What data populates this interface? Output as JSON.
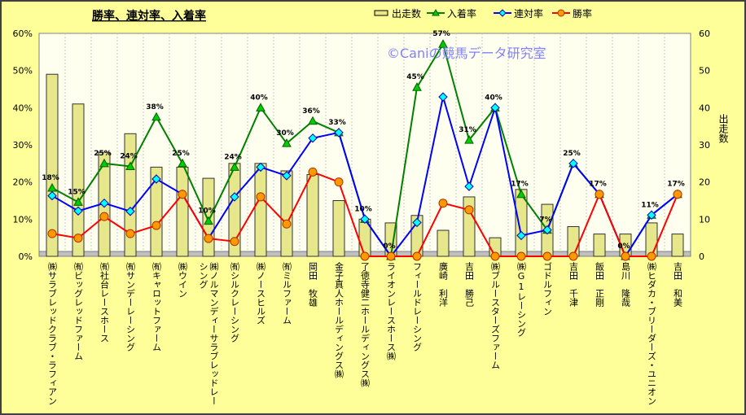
{
  "chart_data": {
    "type": "bar+line",
    "title": "勝率、連対率、入着率",
    "watermark": "©Caniの競馬データ研究室",
    "y_left": {
      "ylim": [
        0,
        60
      ],
      "ticks": [
        "0%",
        "10%",
        "20%",
        "30%",
        "40%",
        "50%",
        "60%"
      ]
    },
    "y_right": {
      "label": "出走数",
      "ylim": [
        0,
        60
      ],
      "ticks": [
        "0",
        "10",
        "20",
        "30",
        "40",
        "50",
        "60"
      ]
    },
    "legend": {
      "placement": "top-right",
      "entries": [
        "出走数",
        "入着率",
        "連対率",
        "勝率"
      ]
    },
    "colors": {
      "bars": "#e6e68a",
      "place": "#008000",
      "quinella": "#0000ff",
      "win": "#ff0000"
    },
    "categories": [
      "㈱サラブレッドクラブ・ラフィアン",
      "㈲ビッグレッドファーム",
      "㈲社台レースホース",
      "㈲サンデーレーシング",
      "㈲キャロットファーム",
      "㈱ウイン",
      "㈱ノルマンディーサラブレッドレーシング",
      "㈲シルクレーシング",
      "㈱ノースヒルズ",
      "㈲ミルファーム",
      "岡田　牧雄",
      "金子真人ホールディングス㈱",
      "了徳寺健二ホールディングス㈱",
      "ライオンレースホース㈱",
      "フィールドレーシング",
      "廣崎　利洋",
      "吉田　勝己",
      "㈱ブルースターズファーム",
      "㈱G1レーシング",
      "ゴドルフィン",
      "吉田　千津",
      "飯田　正剛",
      "島川　隆哉",
      "㈱ヒダカ・ブリーダーズ・ユニオン",
      "吉田　和美"
    ],
    "series": [
      {
        "name": "出走数",
        "type": "bar",
        "axis": "right",
        "values": [
          49,
          41,
          28,
          33,
          24,
          24,
          21,
          25,
          25,
          23,
          22,
          15,
          10,
          9,
          11,
          7,
          16,
          5,
          18,
          14,
          8,
          6,
          6,
          9,
          6
        ]
      },
      {
        "name": "入着率",
        "type": "line",
        "axis": "left",
        "values": [
          18.4,
          14.6,
          25.0,
          24.2,
          37.5,
          25.0,
          9.5,
          24.0,
          40.0,
          30.4,
          36.4,
          33.3,
          10.0,
          0,
          45.5,
          57.1,
          31.3,
          40.0,
          16.7,
          7.1,
          25.0,
          16.7,
          0,
          11.1,
          16.7
        ],
        "labels": [
          "18%",
          "15%",
          "25%",
          "24%",
          "38%",
          "25%",
          "10%",
          "24%",
          "40%",
          "30%",
          "36%",
          "33%",
          "10%",
          "0%",
          "45%",
          "57%",
          "31%",
          "40%",
          "17%",
          "7%",
          "25%",
          "17%",
          "0%",
          "11%",
          "17%"
        ]
      },
      {
        "name": "連対率",
        "type": "line",
        "axis": "left",
        "values": [
          16.3,
          12.2,
          14.3,
          12.1,
          20.8,
          16.7,
          4.8,
          16.0,
          24.0,
          21.7,
          31.8,
          33.3,
          10.0,
          0,
          9.1,
          42.9,
          18.8,
          40.0,
          5.6,
          7.1,
          25.0,
          16.7,
          0,
          11.1,
          16.7
        ]
      },
      {
        "name": "勝率",
        "type": "line",
        "axis": "left",
        "values": [
          6.1,
          4.9,
          10.7,
          6.1,
          8.3,
          16.7,
          4.8,
          4.0,
          16.0,
          8.7,
          22.7,
          20.0,
          0,
          0,
          0,
          14.3,
          12.5,
          0,
          0,
          0,
          0,
          16.7,
          0,
          0,
          16.7
        ]
      }
    ]
  }
}
